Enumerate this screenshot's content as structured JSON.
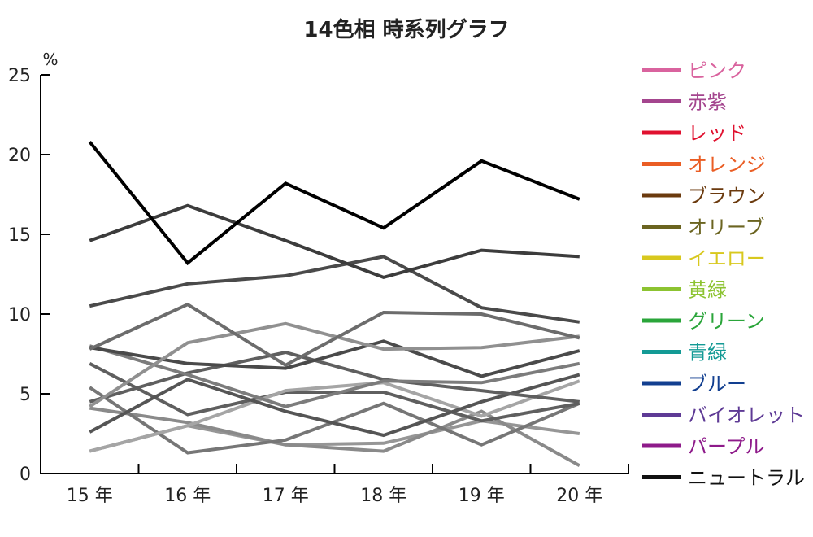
{
  "chart_data": {
    "type": "line",
    "title": "14色相 時系列グラフ",
    "y_unit": "%",
    "ylim": [
      0,
      25
    ],
    "y_ticks": [
      0,
      5,
      10,
      15,
      20,
      25
    ],
    "categories": [
      "15 年",
      "16 年",
      "17 年",
      "18 年",
      "19 年",
      "20 年"
    ],
    "grid": false,
    "legend_position": "right",
    "legend": [
      {
        "name": "ピンク",
        "color": "#d9639e"
      },
      {
        "name": "赤紫",
        "color": "#a4458e"
      },
      {
        "name": "レッド",
        "color": "#e0112f"
      },
      {
        "name": "オレンジ",
        "color": "#ea5d24"
      },
      {
        "name": "ブラウン",
        "color": "#6b3a0e"
      },
      {
        "name": "オリーブ",
        "color": "#6b6420"
      },
      {
        "name": "イエロー",
        "color": "#d8c81e"
      },
      {
        "name": "黄緑",
        "color": "#8cc331"
      },
      {
        "name": "グリーン",
        "color": "#2aa53a"
      },
      {
        "name": "青緑",
        "color": "#139a95"
      },
      {
        "name": "ブルー",
        "color": "#123f90"
      },
      {
        "name": "バイオレット",
        "color": "#5e3a95"
      },
      {
        "name": "パープル",
        "color": "#8e1a8a"
      },
      {
        "name": "ニュートラル",
        "color": "#111111"
      }
    ],
    "series": [
      {
        "values": [
          20.8,
          13.2,
          18.2,
          15.4,
          19.6,
          17.2
        ],
        "color": "#000000"
      },
      {
        "values": [
          14.6,
          16.8,
          14.6,
          12.3,
          14.0,
          13.6
        ],
        "color": "#3c3c3c"
      },
      {
        "values": [
          10.5,
          11.9,
          12.4,
          13.6,
          10.4,
          9.5
        ],
        "color": "#4a4a4a"
      },
      {
        "values": [
          7.8,
          10.6,
          6.8,
          10.1,
          10.0,
          8.5
        ],
        "color": "#6c6c6c"
      },
      {
        "values": [
          4.2,
          8.2,
          9.4,
          7.8,
          7.9,
          8.6
        ],
        "color": "#909090"
      },
      {
        "values": [
          7.9,
          6.9,
          6.6,
          8.3,
          6.1,
          7.7
        ],
        "color": "#4a4a4a"
      },
      {
        "values": [
          8.0,
          6.2,
          4.2,
          5.8,
          5.7,
          6.9
        ],
        "color": "#7c7c7c"
      },
      {
        "values": [
          4.5,
          6.3,
          7.6,
          5.9,
          5.2,
          4.5
        ],
        "color": "#5f5f5f"
      },
      {
        "values": [
          2.6,
          5.9,
          3.9,
          2.4,
          4.5,
          6.2
        ],
        "color": "#555555"
      },
      {
        "values": [
          1.4,
          3.0,
          5.2,
          5.7,
          3.6,
          5.8
        ],
        "color": "#a5a5a5"
      },
      {
        "values": [
          6.9,
          3.7,
          5.1,
          5.1,
          3.3,
          4.4
        ],
        "color": "#5f5f5f"
      },
      {
        "values": [
          5.4,
          1.3,
          2.1,
          4.4,
          1.8,
          4.4
        ],
        "color": "#767676"
      },
      {
        "values": [
          4.1,
          3.2,
          1.8,
          1.4,
          3.9,
          0.5
        ],
        "color": "#8a8a8a"
      },
      {
        "values": [
          1.4,
          3.0,
          1.8,
          1.9,
          3.3,
          2.5
        ],
        "color": "#969696"
      }
    ]
  }
}
